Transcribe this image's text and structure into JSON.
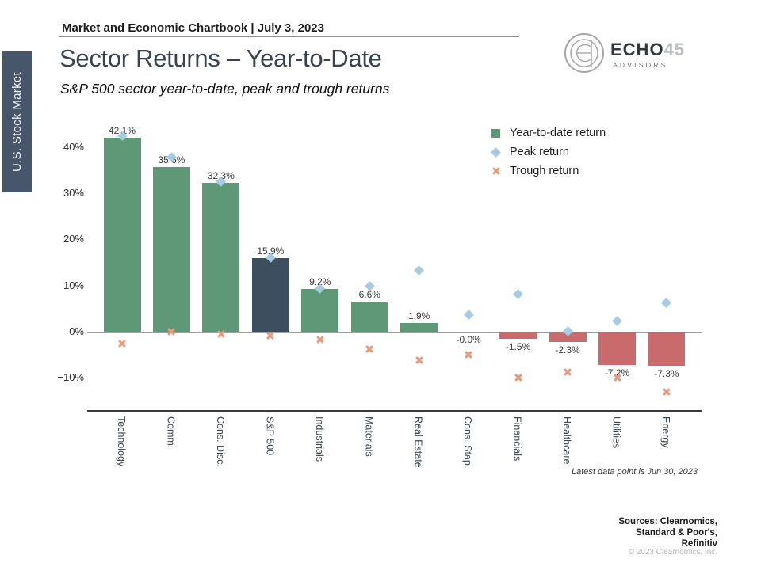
{
  "page": {
    "eyebrow": "Market and Economic Chartbook | July 3, 2023",
    "title": "Sector Returns – Year-to-Date",
    "subtitle": "S&P 500 sector year-to-date, peak and trough returns",
    "side_tab": "U.S. Stock Market",
    "note": "Latest data point is Jun 30, 2023",
    "sources_line1": "Sources: Clearnomics,",
    "sources_line2": "Standard & Poor's,",
    "sources_line3": "Refinitiv",
    "copyright": "© 2023 Clearnomics, Inc."
  },
  "logo": {
    "name": "ECHO",
    "number": "45",
    "sub": "ADVISORS"
  },
  "legend": [
    {
      "label": "Year-to-date return",
      "marker": "square",
      "color": "#5F9876"
    },
    {
      "label": "Peak return",
      "marker": "diamond",
      "color": "#A6CBE3"
    },
    {
      "label": "Trough return",
      "marker": "x",
      "color": "#E9997A"
    }
  ],
  "chart_data": {
    "type": "bar",
    "title": "Sector Returns – Year-to-Date",
    "subtitle": "S&P 500 sector year-to-date, peak and trough returns",
    "categories": [
      "Technology",
      "Comm.",
      "Cons. Disc.",
      "S&P 500",
      "Industrials",
      "Materials",
      "Real Estate",
      "Cons. Stap.",
      "Financials",
      "Healthcare",
      "Utilities",
      "Energy"
    ],
    "series": [
      {
        "name": "Year-to-date return",
        "values": [
          42.1,
          35.6,
          32.3,
          15.9,
          9.2,
          6.6,
          1.9,
          -0.0,
          -1.5,
          -2.3,
          -7.2,
          -7.3
        ]
      },
      {
        "name": "Peak return",
        "values": [
          42.4,
          37.9,
          32.5,
          16.0,
          9.4,
          9.8,
          13.3,
          3.7,
          8.1,
          0.1,
          2.3,
          6.2
        ]
      },
      {
        "name": "Trough return",
        "values": [
          -2.5,
          0.0,
          -0.5,
          -0.8,
          -1.8,
          -3.8,
          -6.2,
          -4.9,
          -10.0,
          -8.7,
          -9.9,
          -13.0
        ]
      }
    ],
    "bar_labels": [
      "42.1%",
      "35.6%",
      "32.3%",
      "15.9%",
      "9.2%",
      "6.6%",
      "1.9%",
      "-0.0%",
      "-1.5%",
      "-2.3%",
      "-7.2%",
      "-7.3%"
    ],
    "highlight_category": "S&P 500",
    "yticks": [
      {
        "v": 40,
        "label": "40%"
      },
      {
        "v": 30,
        "label": "30%"
      },
      {
        "v": 20,
        "label": "20%"
      },
      {
        "v": 10,
        "label": "10%"
      },
      {
        "v": 0,
        "label": "0%"
      },
      {
        "v": -10,
        "label": "−10%"
      }
    ],
    "ylim": [
      -15,
      46
    ],
    "grid": false,
    "legend_position": "upper right",
    "colors": {
      "positive": "#5F9876",
      "negative": "#C96A6C",
      "highlight": "#3D4F5F",
      "peak": "#A6CBE3",
      "trough": "#E9997A"
    }
  }
}
